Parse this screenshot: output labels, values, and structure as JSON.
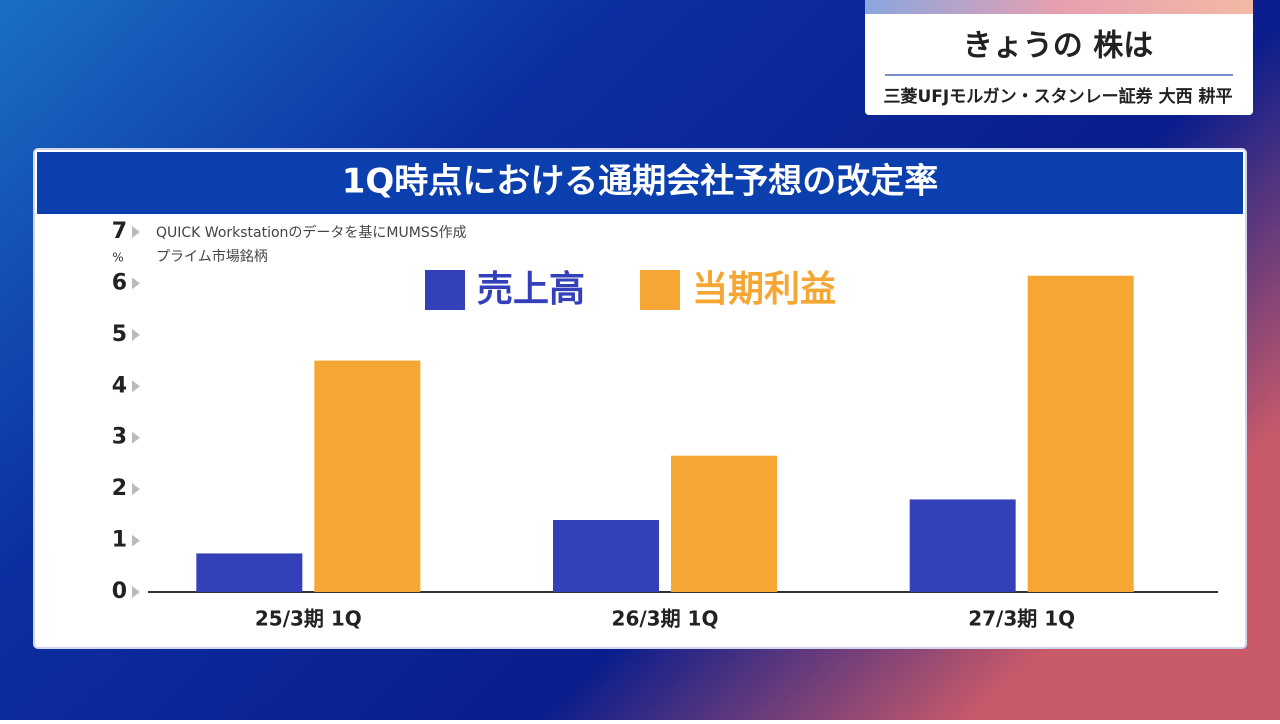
{
  "header": {
    "title": "きょうの 株は",
    "subtitle": "三菱UFJモルガン・スタンレー証券 大西 耕平"
  },
  "chart_data": {
    "type": "bar",
    "title": "1Q時点における通期会社予想の改定率",
    "y_unit": "%",
    "notes": [
      "QUICK Workstationのデータを基にMUMSS作成",
      "プライム市場銘柄"
    ],
    "categories": [
      "25/3期 1Q",
      "26/3期 1Q",
      "27/3期 1Q"
    ],
    "series": [
      {
        "name": "売上高",
        "color": "#3340b8",
        "values": [
          0.75,
          1.4,
          1.8
        ]
      },
      {
        "name": "当期利益",
        "color": "#f5a633",
        "values": [
          4.5,
          2.65,
          6.15
        ]
      }
    ],
    "ylim": [
      0,
      7
    ],
    "yticks": [
      0,
      1,
      2,
      3,
      4,
      5,
      6,
      7
    ],
    "grid": false
  }
}
